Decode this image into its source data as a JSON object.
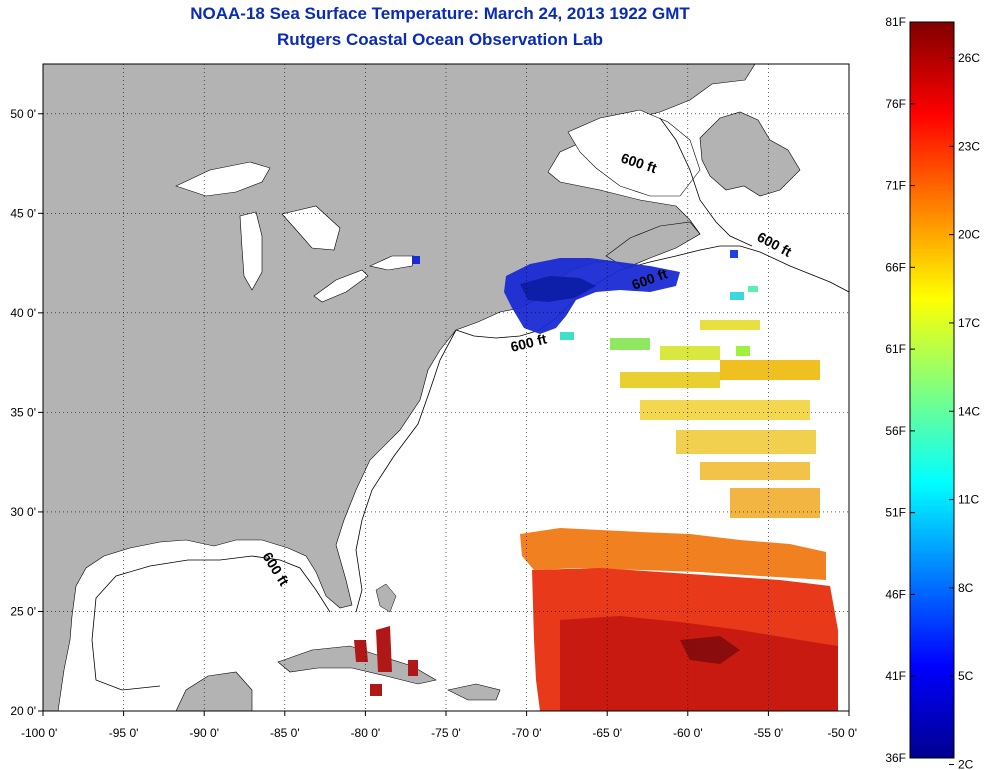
{
  "header": {
    "title": "NOAA-18 Sea Surface Temperature:  March 24, 2013 1922 GMT",
    "subtitle": "Rutgers Coastal Ocean Observation Lab"
  },
  "map": {
    "lon_range": [
      -100,
      -50
    ],
    "lat_range": [
      20,
      52.5
    ],
    "lon_ticks": [
      {
        "value": -100,
        "label": "-100 0'"
      },
      {
        "value": -95,
        "label": "-95 0'"
      },
      {
        "value": -90,
        "label": "-90 0'"
      },
      {
        "value": -85,
        "label": "-85 0'"
      },
      {
        "value": -80,
        "label": "-80 0'"
      },
      {
        "value": -75,
        "label": "-75 0'"
      },
      {
        "value": -70,
        "label": "-70 0'"
      },
      {
        "value": -65,
        "label": "-65 0'"
      },
      {
        "value": -60,
        "label": "-60 0'"
      },
      {
        "value": -55,
        "label": "-55 0'"
      },
      {
        "value": -50,
        "label": "-50 0'"
      }
    ],
    "lat_ticks": [
      {
        "value": 20,
        "label": "20 0'"
      },
      {
        "value": 25,
        "label": "25 0'"
      },
      {
        "value": 30,
        "label": "30 0'"
      },
      {
        "value": 35,
        "label": "35 0'"
      },
      {
        "value": 40,
        "label": "40 0'"
      },
      {
        "value": 45,
        "label": "45 0'"
      },
      {
        "value": 50,
        "label": "50 0'"
      }
    ],
    "grid": "dotted",
    "land_color": "#b3b3b3",
    "ocean_color": "#ffffff",
    "contour_labels": [
      "600 ft",
      "600 ft",
      "600 ft",
      "600 ft",
      "600 ft"
    ]
  },
  "colorbar": {
    "min_f": 36,
    "max_f": 81,
    "fahrenheit_labels": [
      "81F",
      "76F",
      "71F",
      "66F",
      "61F",
      "56F",
      "51F",
      "46F",
      "41F",
      "36F"
    ],
    "celsius_labels": [
      "26C",
      "23C",
      "20C",
      "17C",
      "14C",
      "11C",
      "8C",
      "5C",
      "2C"
    ],
    "colormap": "jet"
  }
}
